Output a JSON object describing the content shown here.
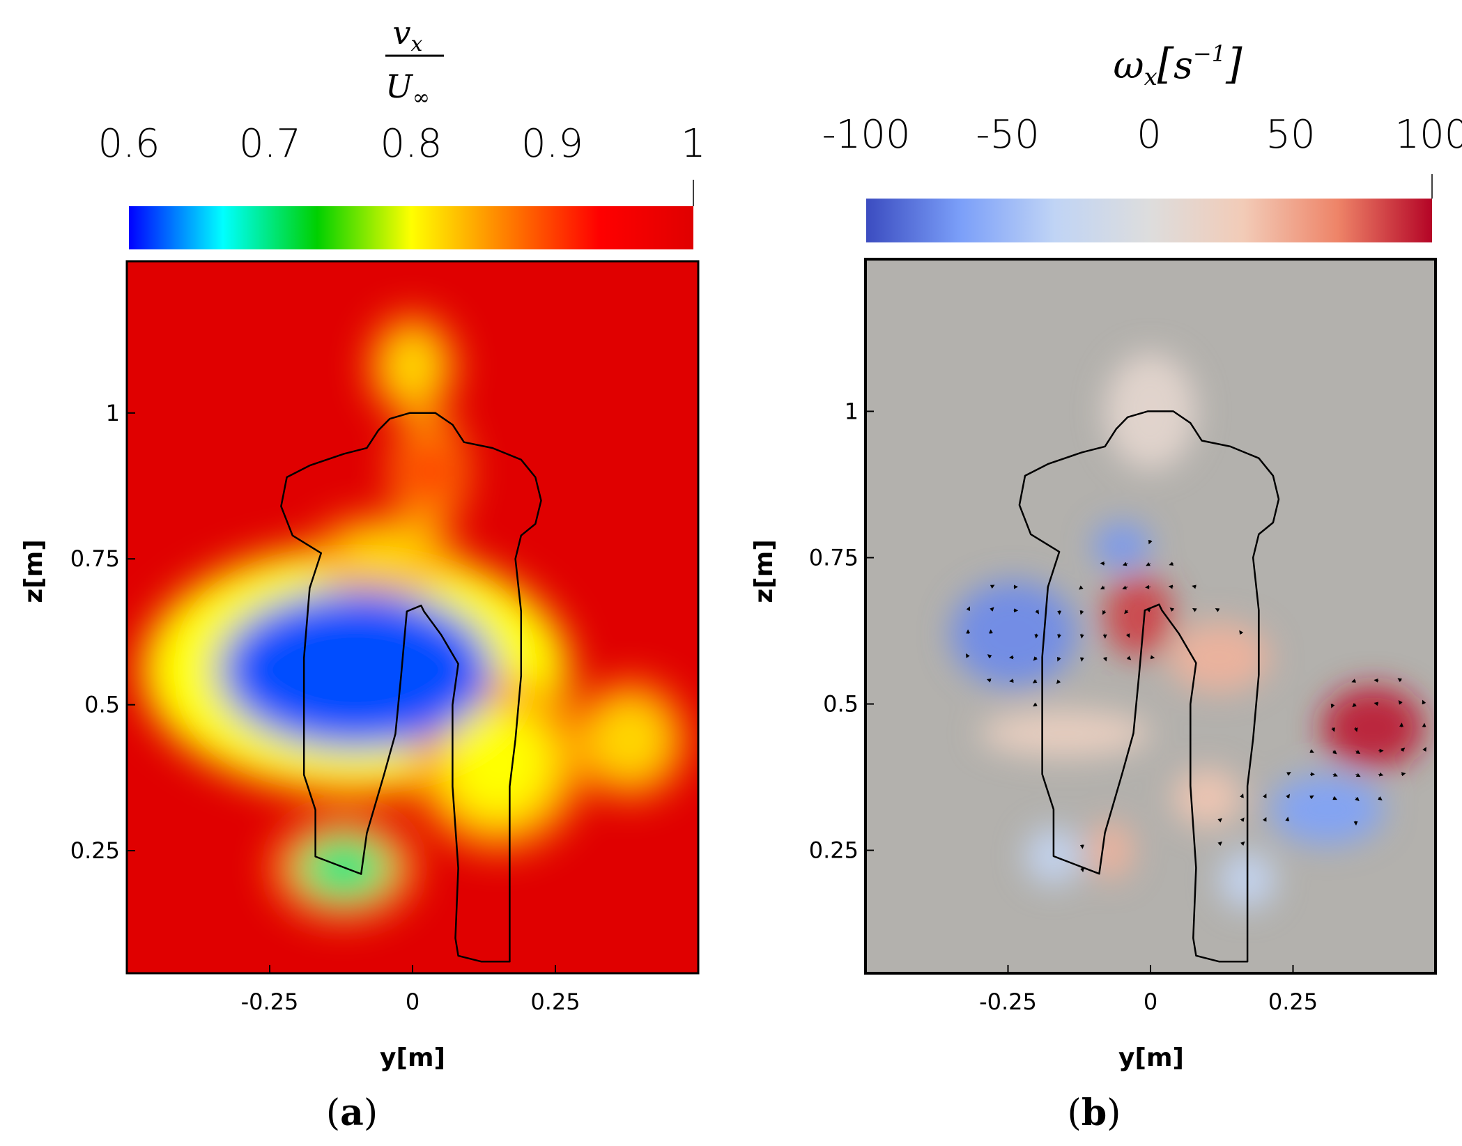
{
  "chart_data": [
    {
      "type": "heatmap",
      "panel": "(a)",
      "caption_letter": "a",
      "colorbar": {
        "label_num": "v",
        "label_num_sub": "x",
        "label_den": "U",
        "label_den_sub": "∞",
        "ticks": [
          0.6,
          0.7,
          0.8,
          0.9,
          1
        ],
        "tick_labels": [
          "0.6",
          "0.7",
          "0.8",
          "0.9",
          "1"
        ],
        "range": [
          0.6,
          1
        ],
        "colors": [
          "#0000ff",
          "#00ffff",
          "#00d000",
          "#ffff00",
          "#ff8000",
          "#ff0000",
          "#e00000"
        ]
      },
      "xlabel": "y[m]",
      "ylabel": "z[m]",
      "xticks": [
        -0.25,
        0,
        0.25
      ],
      "xtick_labels": [
        "-0.25",
        "0",
        "0.25"
      ],
      "yticks": [
        0.25,
        0.5,
        0.75,
        1
      ],
      "ytick_labels": [
        "0.25",
        "0.5",
        "0.75",
        "1"
      ],
      "xlim": [
        -0.5,
        0.5
      ],
      "ylim": [
        0.04,
        1.26
      ],
      "background_value": 1.0,
      "field_blobs": [
        {
          "y": -0.1,
          "z": 0.56,
          "ry": 0.3,
          "rz": 0.17,
          "value": 0.62
        },
        {
          "y": -0.12,
          "z": 0.22,
          "ry": 0.1,
          "rz": 0.07,
          "value": 0.7
        },
        {
          "y": 0.0,
          "z": 1.08,
          "ry": 0.06,
          "rz": 0.07,
          "value": 0.82
        },
        {
          "y": -0.05,
          "z": 0.76,
          "ry": 0.1,
          "rz": 0.05,
          "value": 0.82
        },
        {
          "y": 0.15,
          "z": 0.4,
          "ry": 0.12,
          "rz": 0.12,
          "value": 0.8
        },
        {
          "y": 0.38,
          "z": 0.44,
          "ry": 0.08,
          "rz": 0.08,
          "value": 0.82
        },
        {
          "y": 0.03,
          "z": 0.9,
          "ry": 0.05,
          "rz": 0.08,
          "value": 0.93
        }
      ]
    },
    {
      "type": "heatmap",
      "panel": "(b)",
      "caption_letter": "b",
      "colorbar": {
        "label": "ω",
        "label_sub": "x",
        "label_unit": "s",
        "label_exp": "−1",
        "ticks": [
          -100,
          -50,
          0,
          50,
          100
        ],
        "tick_labels": [
          "-100",
          "-50",
          "0",
          "50",
          "100"
        ],
        "range": [
          -100,
          100
        ],
        "colors": [
          "#3b4cc0",
          "#7b9ff9",
          "#c0d4f5",
          "#dddddd",
          "#f2cbb7",
          "#ee8468",
          "#b40426"
        ]
      },
      "xlabel": "y[m]",
      "ylabel": "z[m]",
      "xticks": [
        -0.25,
        0,
        0.25
      ],
      "xtick_labels": [
        "-0.25",
        "0",
        "0.25"
      ],
      "yticks": [
        0.25,
        0.5,
        0.75,
        1
      ],
      "ytick_labels": [
        "0.25",
        "0.5",
        "0.75",
        "1"
      ],
      "xlim": [
        -0.5,
        0.5
      ],
      "ylim": [
        0.04,
        1.26
      ],
      "background_value": 0,
      "vortices": [
        {
          "y": -0.24,
          "z": 0.62,
          "ry": 0.11,
          "rz": 0.09,
          "value": -75
        },
        {
          "y": -0.05,
          "z": 0.77,
          "ry": 0.05,
          "rz": 0.04,
          "value": -70
        },
        {
          "y": -0.02,
          "z": 0.65,
          "ry": 0.06,
          "rz": 0.07,
          "value": 85
        },
        {
          "y": 0.12,
          "z": 0.58,
          "ry": 0.09,
          "rz": 0.06,
          "value": 45
        },
        {
          "y": 0.39,
          "z": 0.46,
          "ry": 0.09,
          "rz": 0.07,
          "value": 95
        },
        {
          "y": 0.31,
          "z": 0.32,
          "ry": 0.1,
          "rz": 0.06,
          "value": -65
        },
        {
          "y": -0.07,
          "z": 0.25,
          "ry": 0.04,
          "rz": 0.05,
          "value": 45
        },
        {
          "y": -0.17,
          "z": 0.24,
          "ry": 0.05,
          "rz": 0.05,
          "value": -30
        },
        {
          "y": 0.1,
          "z": 0.34,
          "ry": 0.06,
          "rz": 0.05,
          "value": 35
        },
        {
          "y": 0.17,
          "z": 0.2,
          "ry": 0.05,
          "rz": 0.05,
          "value": -30
        },
        {
          "y": 0.0,
          "z": 1.0,
          "ry": 0.08,
          "rz": 0.1,
          "value": 12
        },
        {
          "y": -0.15,
          "z": 0.45,
          "ry": 0.15,
          "rz": 0.04,
          "value": 25
        }
      ]
    }
  ]
}
